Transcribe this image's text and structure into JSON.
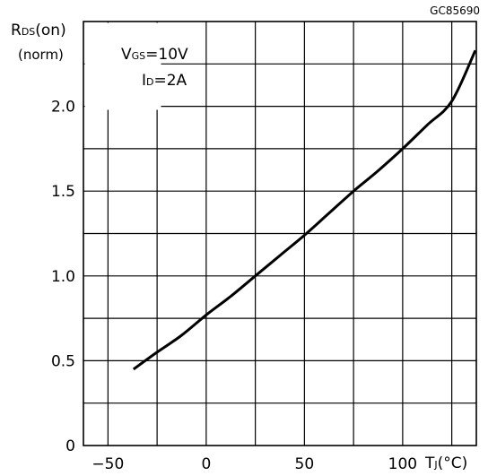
{
  "figure_code": "GC85690",
  "conditions": {
    "vgs": {
      "main": "V",
      "sub": "GS",
      "rest": "=10V"
    },
    "id": {
      "main": "I",
      "sub": "D",
      "rest": "=2A"
    }
  },
  "chart_data": {
    "type": "line",
    "title": "",
    "ylabel": {
      "main": "R",
      "sub": "DS",
      "rest": "(on)",
      "line2": "(norm)"
    },
    "xlabel": {
      "main": "T",
      "sub": "J",
      "rest": "(°C)"
    },
    "xlim": [
      -62.5,
      137.5
    ],
    "ylim": [
      0,
      2.5
    ],
    "x_ticks": [
      -50,
      0,
      50,
      100
    ],
    "x_tick_labels": [
      "−50",
      "0",
      "50",
      "100"
    ],
    "y_ticks": [
      0,
      0.5,
      1.0,
      1.5,
      2.0
    ],
    "y_tick_labels": [
      "0",
      "0.5",
      "1.0",
      "1.5",
      "2.0"
    ],
    "x_grid_step": 25,
    "y_grid_step": 0.25,
    "grid": true,
    "series": [
      {
        "x": [
          -37,
          -25,
          -12.5,
          0,
          12.5,
          25,
          37.5,
          50,
          62.5,
          75,
          87.5,
          100,
          112.5,
          125,
          137
        ],
        "y": [
          0.45,
          0.55,
          0.65,
          0.77,
          0.88,
          1.0,
          1.12,
          1.24,
          1.37,
          1.5,
          1.62,
          1.75,
          1.89,
          2.03,
          2.33
        ]
      }
    ]
  }
}
